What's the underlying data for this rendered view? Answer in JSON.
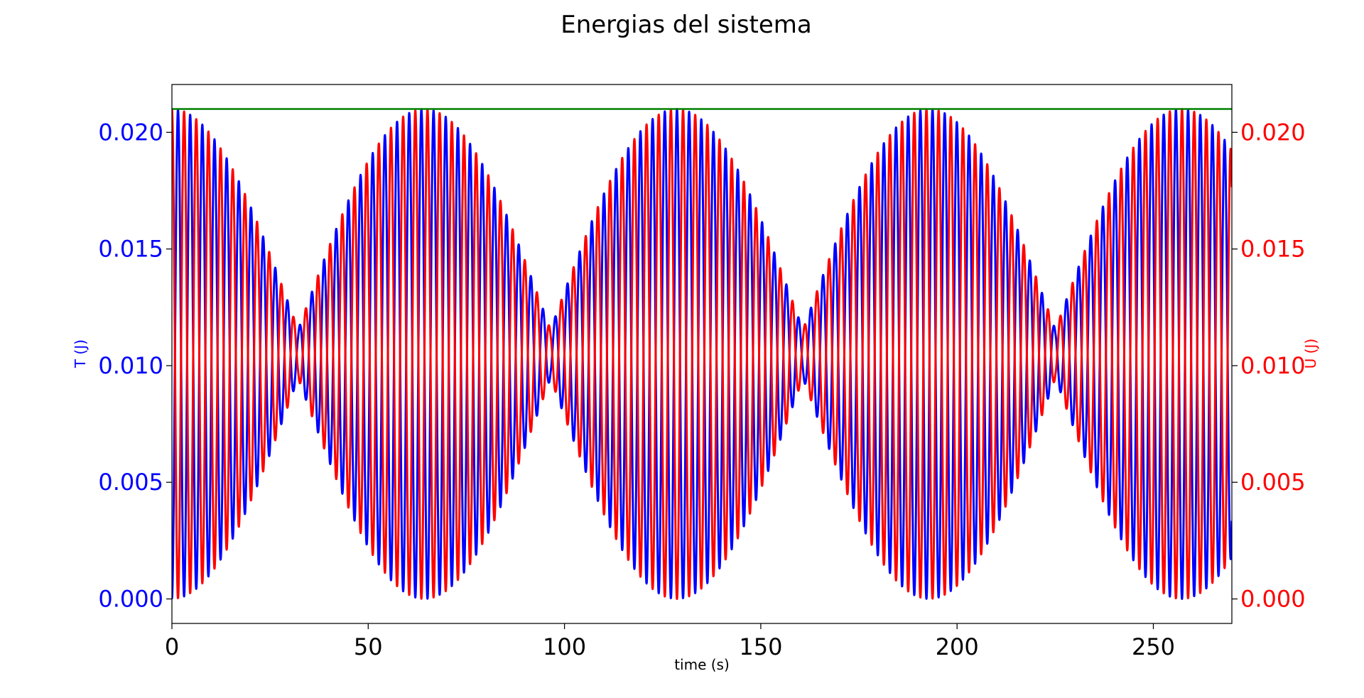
{
  "chart_data": {
    "type": "line",
    "title": "Energias del sistema",
    "xlabel": "time (s)",
    "ylabel_left": "T (J)",
    "ylabel_right": "U (J)",
    "xlim": [
      0,
      270
    ],
    "ylim": [
      -0.00105,
      0.02205
    ],
    "x_ticks": [
      0,
      50,
      100,
      150,
      200,
      250
    ],
    "y_ticks": [
      0.0,
      0.005,
      0.01,
      0.015,
      0.02
    ],
    "x_tick_labels": [
      "0",
      "50",
      "100",
      "150",
      "200",
      "250"
    ],
    "y_tick_labels_left": [
      "0.000",
      "0.005",
      "0.010",
      "0.015",
      "0.020"
    ],
    "y_tick_labels_right": [
      "0.000",
      "0.005",
      "0.010",
      "0.015",
      "0.020"
    ],
    "grid": false,
    "series": [
      {
        "key": "T",
        "color": "#0000ff",
        "axis": "left",
        "mean": 0.0105,
        "amplitude": 0.0105,
        "carrier_period_s": 3.1,
        "beat_period_s": 64.3,
        "beat_max_at_s": [
          0,
          64.3,
          128.6,
          192.9,
          257.2
        ],
        "beat_min_at_s": [
          32.2,
          96.5,
          160.8,
          225.1
        ]
      },
      {
        "key": "U",
        "color": "#ff0000",
        "axis": "right",
        "mean": 0.0105,
        "amplitude": 0.0105,
        "carrier_period_s": 3.1,
        "beat_period_s": 64.3,
        "beat_max_at_s": [
          0,
          64.3,
          128.6,
          192.9,
          257.2
        ],
        "beat_min_at_s": [
          32.2,
          96.5,
          160.8,
          225.1
        ]
      },
      {
        "key": "E",
        "color": "#008000",
        "axis": "left",
        "constant": 0.021
      }
    ]
  }
}
